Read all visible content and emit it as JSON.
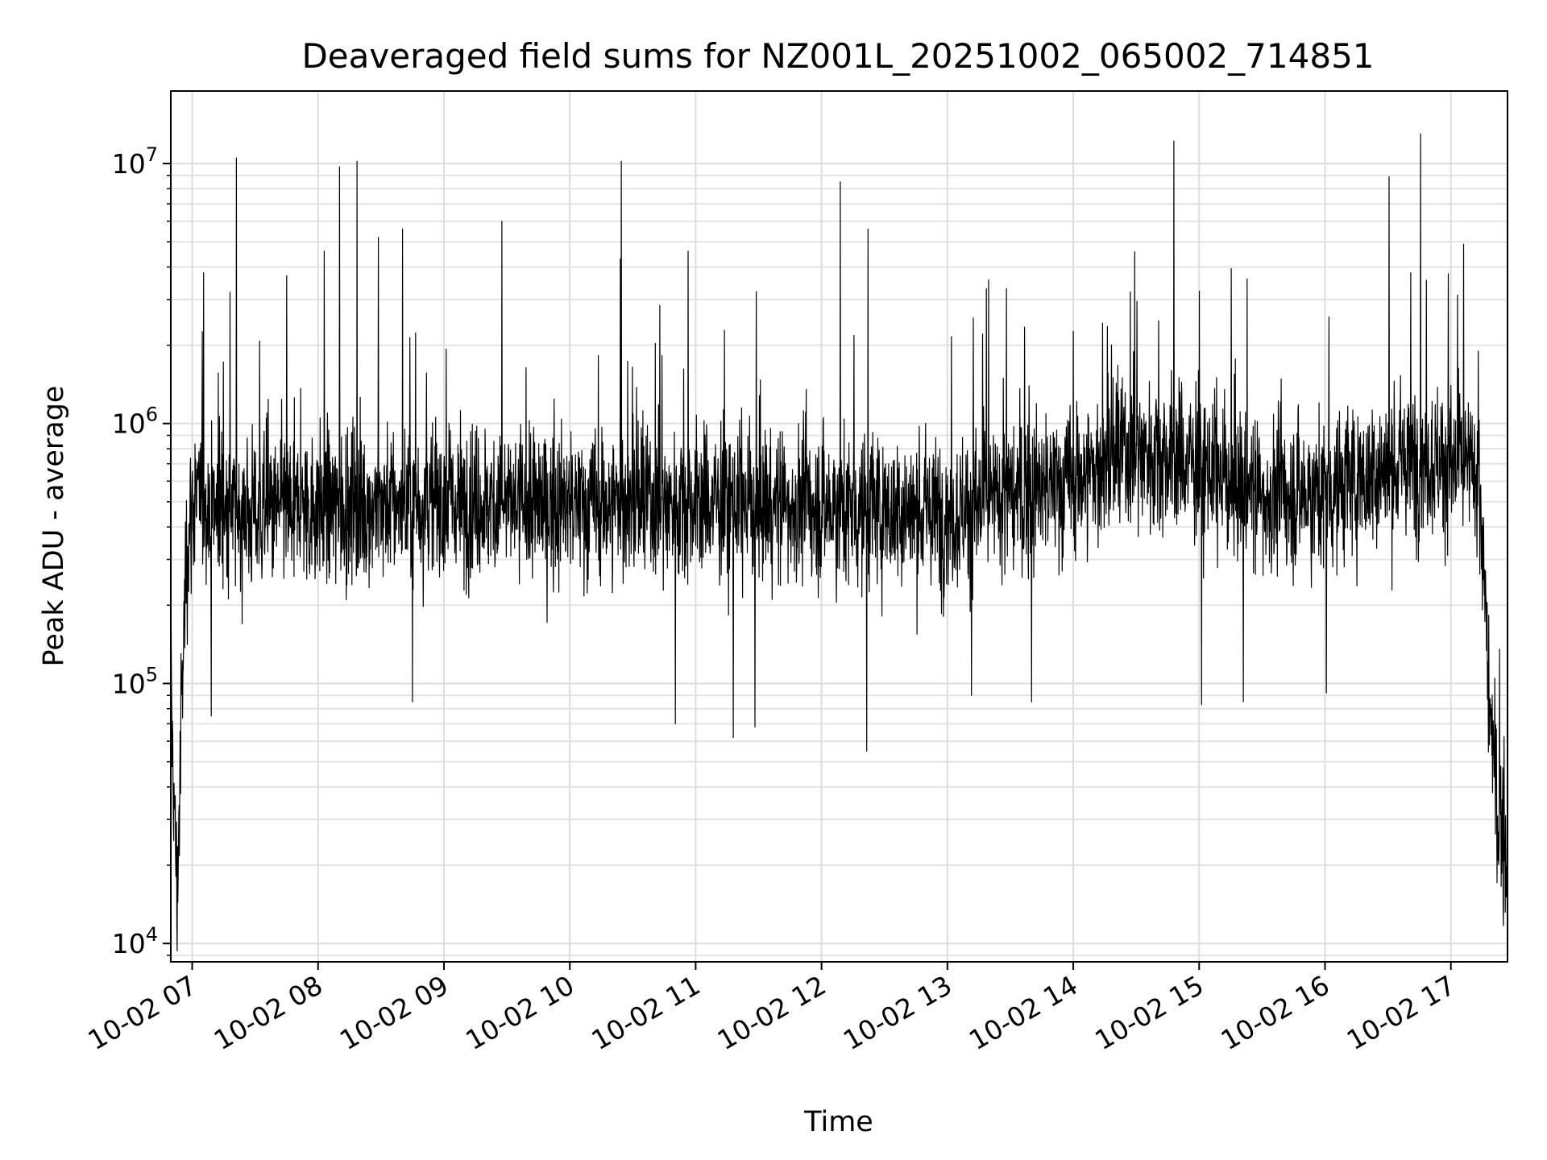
{
  "chart_data": {
    "type": "line",
    "title": "Deaveraged field sums for NZ001L_20251002_065002_714851",
    "xlabel": "Time",
    "ylabel": "Peak ADU - average",
    "yscale": "log",
    "ylim": [
      8500,
      19000000
    ],
    "xlim_hours": [
      6.83,
      17.45
    ],
    "grid": true,
    "x_ticks": [
      {
        "hour": 7,
        "label": "10-02 07"
      },
      {
        "hour": 8,
        "label": "10-02 08"
      },
      {
        "hour": 9,
        "label": "10-02 09"
      },
      {
        "hour": 10,
        "label": "10-02 10"
      },
      {
        "hour": 11,
        "label": "10-02 11"
      },
      {
        "hour": 12,
        "label": "10-02 12"
      },
      {
        "hour": 13,
        "label": "10-02 13"
      },
      {
        "hour": 14,
        "label": "10-02 14"
      },
      {
        "hour": 15,
        "label": "10-02 15"
      },
      {
        "hour": 16,
        "label": "10-02 16"
      },
      {
        "hour": 17,
        "label": "10-02 17"
      }
    ],
    "y_ticks": [
      {
        "value": 10000,
        "base": "10",
        "exp": "4"
      },
      {
        "value": 100000,
        "base": "10",
        "exp": "5"
      },
      {
        "value": 1000000,
        "base": "10",
        "exp": "6"
      },
      {
        "value": 10000000,
        "base": "10",
        "exp": "7"
      }
    ],
    "series": [
      {
        "name": "field sum",
        "color": "#000000",
        "baseline_points": [
          [
            6.83,
            100000
          ],
          [
            6.86,
            30000
          ],
          [
            6.88,
            15000
          ],
          [
            6.91,
            60000
          ],
          [
            6.95,
            300000
          ],
          [
            7.0,
            500000
          ],
          [
            7.5,
            450000
          ],
          [
            8.0,
            480000
          ],
          [
            9.0,
            500000
          ],
          [
            10.0,
            480000
          ],
          [
            11.0,
            500000
          ],
          [
            12.0,
            480000
          ],
          [
            13.0,
            450000
          ],
          [
            14.0,
            600000
          ],
          [
            14.5,
            800000
          ],
          [
            15.0,
            700000
          ],
          [
            15.5,
            520000
          ],
          [
            16.0,
            550000
          ],
          [
            16.8,
            750000
          ],
          [
            17.22,
            650000
          ],
          [
            17.3,
            100000
          ],
          [
            17.35,
            40000
          ],
          [
            17.45,
            20000
          ]
        ],
        "spikes": [
          [
            7.09,
            3800000
          ],
          [
            7.3,
            3200000
          ],
          [
            7.35,
            10500000
          ],
          [
            7.75,
            3700000
          ],
          [
            8.05,
            4600000
          ],
          [
            8.17,
            9700000
          ],
          [
            8.31,
            10200000
          ],
          [
            8.48,
            5200000
          ],
          [
            8.67,
            5600000
          ],
          [
            9.46,
            6000000
          ],
          [
            10.41,
            10200000
          ],
          [
            10.4,
            4300000
          ],
          [
            10.94,
            4600000
          ],
          [
            12.15,
            8500000
          ],
          [
            12.37,
            5600000
          ],
          [
            13.31,
            3300000
          ],
          [
            13.47,
            3300000
          ],
          [
            14.8,
            12200000
          ],
          [
            15.38,
            3600000
          ],
          [
            16.51,
            8900000
          ],
          [
            16.68,
            3800000
          ],
          [
            16.76,
            13000000
          ]
        ],
        "dips": [
          [
            7.15,
            75000
          ],
          [
            8.75,
            85000
          ],
          [
            10.84,
            70000
          ],
          [
            11.3,
            62000
          ],
          [
            11.47,
            68000
          ],
          [
            12.36,
            55000
          ],
          [
            13.19,
            90000
          ],
          [
            13.67,
            85000
          ],
          [
            15.02,
            83000
          ],
          [
            15.35,
            85000
          ],
          [
            16.01,
            92000
          ]
        ]
      }
    ]
  }
}
